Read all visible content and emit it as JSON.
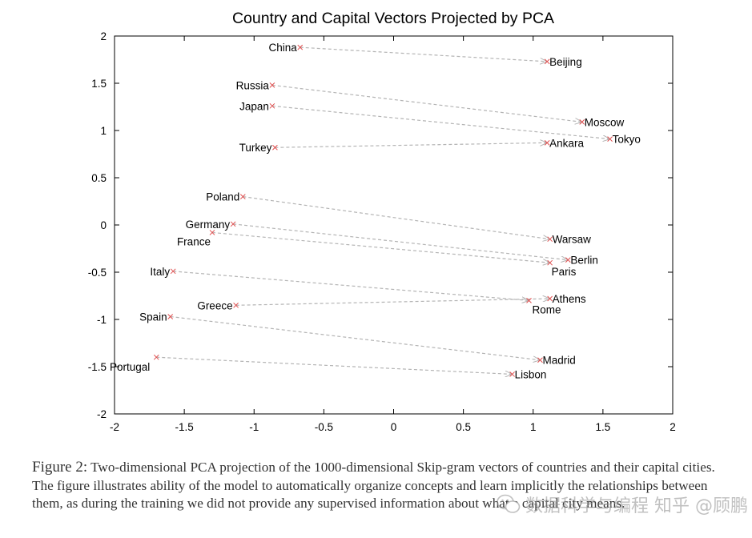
{
  "figure": {
    "caption_label": "Figure 2:",
    "caption_text": " Two-dimensional PCA projection of the 1000-dimensional Skip-gram vectors of countries and their capital cities. The figure illustrates ability of the model to automatically organize concepts and learn implicitly the relationships between them, as during the training we did not provide any supervised information about what a capital city means.",
    "watermark_text": "数据科学与编程 知乎 @顾鹏"
  },
  "chart_data": {
    "type": "scatter",
    "title": "Country and Capital Vectors Projected by PCA",
    "xlabel": "",
    "ylabel": "",
    "xlim": [
      -2,
      2
    ],
    "ylim": [
      -2,
      2
    ],
    "grid": false,
    "x_ticks": [
      -2,
      -1.5,
      -1,
      -0.5,
      0,
      0.5,
      1,
      1.5,
      2
    ],
    "y_ticks": [
      -2,
      -1.5,
      -1,
      -0.5,
      0,
      0.5,
      1,
      1.5,
      2
    ],
    "x_tick_labels": [
      "-2",
      "-1.5",
      "-1",
      "-0.5",
      "0",
      "0.5",
      "1",
      "1.5",
      "2"
    ],
    "y_tick_labels": [
      "-2",
      "-1.5",
      "-1",
      "-0.5",
      "0",
      "0.5",
      "1",
      "1.5",
      "2"
    ],
    "marker_color": "#e05050",
    "arrow_color": "#b4b4b4",
    "pairs": [
      {
        "country": "China",
        "cx": -0.67,
        "cy": 1.88,
        "capital": "Beijing",
        "kx": 1.1,
        "ky": 1.73
      },
      {
        "country": "Russia",
        "cx": -0.87,
        "cy": 1.48,
        "capital": "Moscow",
        "kx": 1.35,
        "ky": 1.09
      },
      {
        "country": "Japan",
        "cx": -0.87,
        "cy": 1.26,
        "capital": "Tokyo",
        "kx": 1.55,
        "ky": 0.91
      },
      {
        "country": "Turkey",
        "cx": -0.85,
        "cy": 0.82,
        "capital": "Ankara",
        "kx": 1.1,
        "ky": 0.87
      },
      {
        "country": "Poland",
        "cx": -1.08,
        "cy": 0.3,
        "capital": "Warsaw",
        "kx": 1.12,
        "ky": -0.15
      },
      {
        "country": "Germany",
        "cx": -1.15,
        "cy": 0.01,
        "capital": "Berlin",
        "kx": 1.25,
        "ky": -0.37
      },
      {
        "country": "France",
        "cx": -1.3,
        "cy": -0.08,
        "capital": "Paris",
        "kx": 1.12,
        "ky": -0.4
      },
      {
        "country": "Italy",
        "cx": -1.58,
        "cy": -0.49,
        "capital": "Rome",
        "kx": 0.97,
        "ky": -0.8
      },
      {
        "country": "Greece",
        "cx": -1.13,
        "cy": -0.85,
        "capital": "Athens",
        "kx": 1.12,
        "ky": -0.78
      },
      {
        "country": "Spain",
        "cx": -1.6,
        "cy": -0.97,
        "capital": "Madrid",
        "kx": 1.05,
        "ky": -1.43
      },
      {
        "country": "Portugal",
        "cx": -1.7,
        "cy": -1.4,
        "capital": "Lisbon",
        "kx": 0.85,
        "ky": -1.58
      }
    ]
  }
}
